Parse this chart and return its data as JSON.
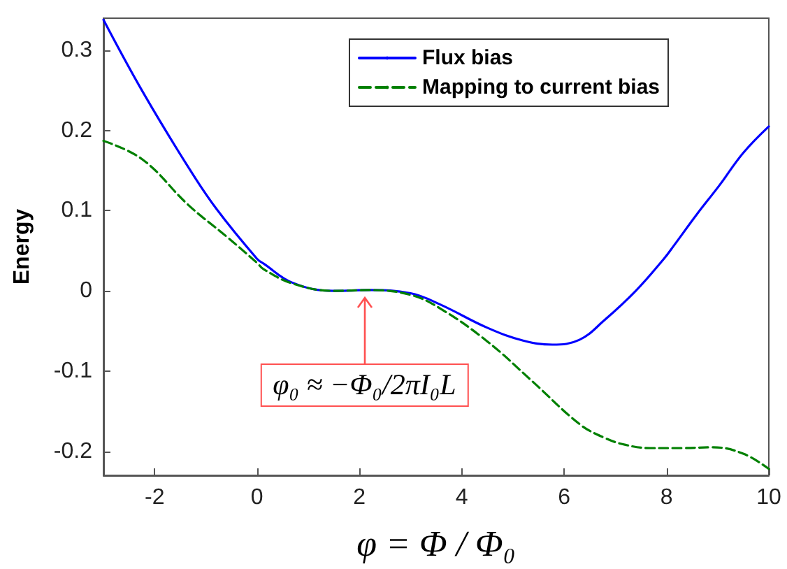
{
  "chart_data": {
    "type": "line",
    "xlabel": "φ = Φ / Φ₀",
    "ylabel": "Energy",
    "xlim": [
      -3,
      10
    ],
    "xticks": [
      -2,
      0,
      2,
      4,
      6,
      8,
      10
    ],
    "ylim": [
      -0.23,
      0.34
    ],
    "yticks": [
      -0.2,
      -0.1,
      0,
      0.1,
      0.2,
      0.3
    ],
    "legend": "top right",
    "grid": false,
    "series": [
      {
        "name": "Flux bias",
        "color": "#0000ff",
        "line_style": "solid",
        "x": [
          -3,
          -2.24,
          -1.34,
          -0.79,
          0,
          0.13,
          0.7,
          1.5,
          2.2,
          3,
          3.58,
          4.5,
          5.2,
          5.77,
          6.3,
          6.78,
          7.4,
          7.95,
          8.14,
          8.6,
          9.04,
          9.5,
          10
        ],
        "values": [
          0.338,
          0.249,
          0.154,
          0.102,
          0.04,
          0.034,
          0.01,
          0.0,
          0.001,
          -0.003,
          -0.017,
          -0.046,
          -0.062,
          -0.067,
          -0.061,
          -0.037,
          0.0,
          0.04,
          0.056,
          0.096,
          0.132,
          0.172,
          0.205
        ]
      },
      {
        "name": "Mapping to current bias",
        "color": "#008000",
        "line_style": "dashed",
        "x": [
          -3,
          -2.24,
          -1.34,
          -0.6,
          0,
          0.13,
          0.7,
          1.5,
          2.2,
          3,
          3.58,
          4.5,
          5.4,
          6.3,
          6.78,
          7.2,
          7.68,
          8.3,
          8.9,
          9.5,
          10
        ],
        "values": [
          0.187,
          0.164,
          0.107,
          0.068,
          0.035,
          0.027,
          0.009,
          0.0,
          0.001,
          -0.005,
          -0.022,
          -0.063,
          -0.114,
          -0.166,
          -0.183,
          -0.192,
          -0.196,
          -0.196,
          -0.195,
          -0.203,
          -0.222
        ]
      }
    ],
    "annotations": [
      {
        "text": "φ₀ ≈ −Φ₀/2πI₀L",
        "x": 2.1,
        "y": 0
      }
    ]
  }
}
